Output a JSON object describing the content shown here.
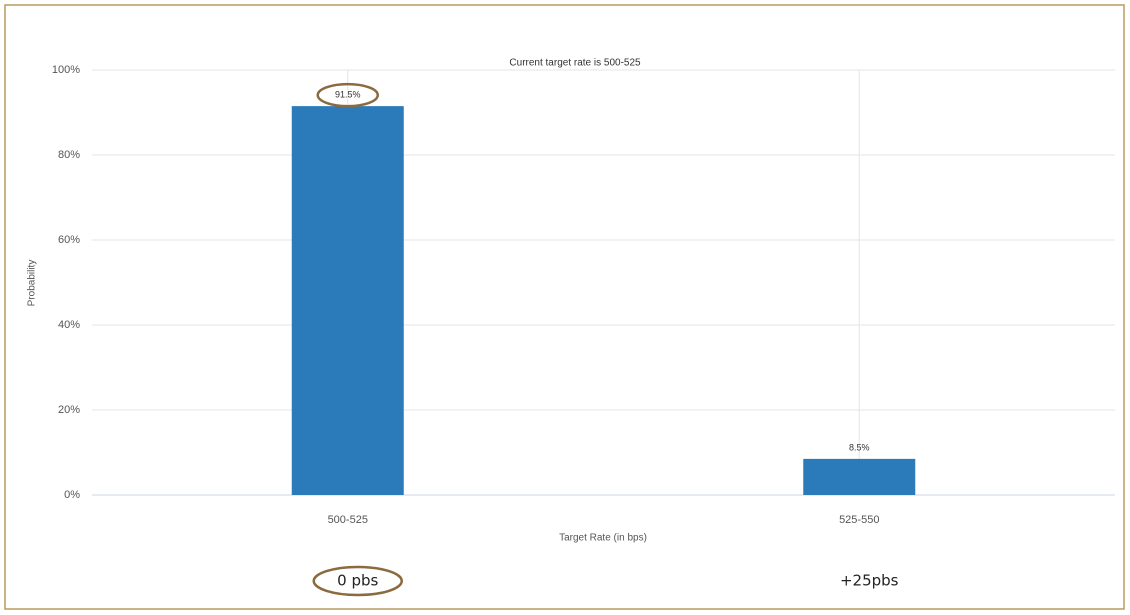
{
  "chart_data": {
    "type": "bar",
    "title": "Current target rate is 500-525",
    "x_label": "Target Rate (in bps)",
    "y_label": "Probability",
    "categories": [
      "500-525",
      "525-550"
    ],
    "values": [
      91.5,
      8.5
    ],
    "value_labels": [
      "91.5%",
      "8.5%"
    ],
    "color": "#2b7bba",
    "ylim": [
      0,
      100
    ],
    "yticks": [
      {
        "value": 0,
        "label": "0%"
      },
      {
        "value": 20,
        "label": "20%"
      },
      {
        "value": 40,
        "label": "40%"
      },
      {
        "value": 60,
        "label": "60%"
      },
      {
        "value": 80,
        "label": "80%"
      },
      {
        "value": 100,
        "label": "100%"
      }
    ],
    "grid": true,
    "annotations": [
      "0 pbs",
      "+25pbs"
    ]
  }
}
